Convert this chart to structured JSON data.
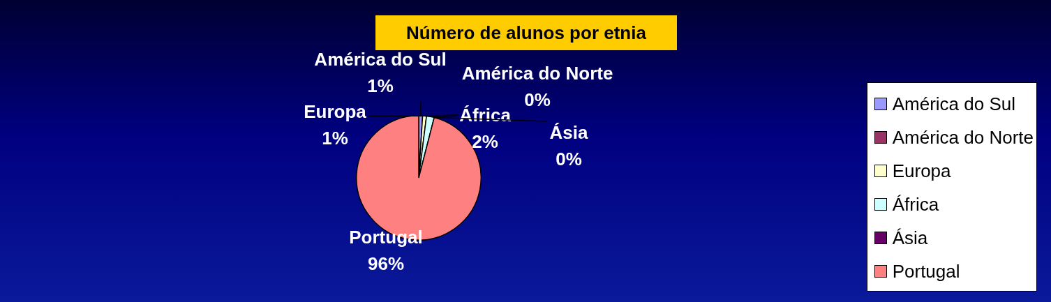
{
  "chart_data": {
    "type": "pie",
    "title": "Número de alunos por etnia",
    "categories": [
      "América do Sul",
      "América do Norte",
      "Europa",
      "África",
      "Ásia",
      "Portugal"
    ],
    "values": [
      1,
      0,
      1,
      2,
      0,
      96
    ],
    "value_labels": [
      "1%",
      "0%",
      "1%",
      "2%",
      "0%",
      "96%"
    ],
    "colors": [
      "#9999ff",
      "#993366",
      "#ffffcc",
      "#ccffff",
      "#660066",
      "#ff8080"
    ],
    "legend": "right"
  }
}
